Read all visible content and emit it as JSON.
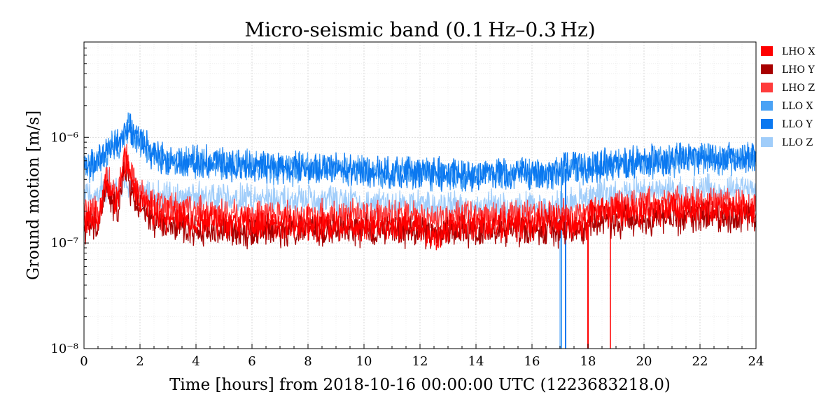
{
  "chart_data": {
    "type": "line",
    "title": "Micro-seismic band (0.1 Hz–0.3 Hz)",
    "xlabel": "Time [hours] from 2018-10-16 00:00:00 UTC (1223683218.0)",
    "ylabel": "Ground motion [m/s]",
    "xlim": [
      0,
      24
    ],
    "ylim": [
      1e-08,
      8e-06
    ],
    "yscale": "log",
    "grid": true,
    "legend_position": "right",
    "x_ticks": [
      0,
      2,
      4,
      6,
      8,
      10,
      12,
      14,
      16,
      18,
      20,
      22,
      24
    ],
    "x_tick_labels": [
      "0",
      "2",
      "4",
      "6",
      "8",
      "10",
      "12",
      "14",
      "16",
      "18",
      "20",
      "22",
      "24"
    ],
    "y_ticks": [
      1e-08,
      1e-07,
      1e-06
    ],
    "y_tick_labels": [
      "10⁻⁸",
      "10⁻⁷",
      "10⁻⁶"
    ],
    "x_hours": [
      0,
      0.5,
      0.8,
      1.0,
      1.2,
      1.5,
      1.6,
      2.0,
      2.5,
      3,
      4,
      5,
      6,
      7,
      8,
      9,
      10,
      11,
      12,
      12.6,
      13,
      14,
      15,
      16,
      16.5,
      17.0,
      17.2,
      17.5,
      18.0,
      18.7,
      19,
      20,
      21,
      22,
      23,
      24
    ],
    "series": [
      {
        "name": "LHO X",
        "color": "#ff0000",
        "values": [
          1.6e-07,
          1.7e-07,
          4e-07,
          2.6e-07,
          2.4e-07,
          6.5e-07,
          4.2e-07,
          2.6e-07,
          2e-07,
          1.8e-07,
          1.6e-07,
          1.6e-07,
          1.5e-07,
          1.5e-07,
          1.5e-07,
          1.5e-07,
          1.5e-07,
          1.5e-07,
          1.5e-07,
          1e-07,
          1.5e-07,
          1.5e-07,
          1.5e-07,
          1.5e-07,
          1.6e-07,
          1.6e-07,
          1.5e-07,
          1.5e-07,
          null,
          2e-07,
          2e-07,
          2e-07,
          2.2e-07,
          2.1e-07,
          2e-07,
          2e-07
        ],
        "dropouts": [
          18.0
        ]
      },
      {
        "name": "LHO Y",
        "color": "#a80000",
        "values": [
          1.4e-07,
          1.4e-07,
          3.5e-07,
          2.2e-07,
          2e-07,
          5.5e-07,
          3.5e-07,
          2e-07,
          1.6e-07,
          1.4e-07,
          1.3e-07,
          1.3e-07,
          1.3e-07,
          1.3e-07,
          1.3e-07,
          1.3e-07,
          1.3e-07,
          1.3e-07,
          1.3e-07,
          1.2e-07,
          1.3e-07,
          1.3e-07,
          1.3e-07,
          1.3e-07,
          1.3e-07,
          1.3e-07,
          1.3e-07,
          1.3e-07,
          null,
          1.6e-07,
          1.6e-07,
          1.7e-07,
          1.7e-07,
          1.8e-07,
          1.8e-07,
          1.8e-07
        ],
        "dropouts": [
          18.0
        ]
      },
      {
        "name": "LHO Z",
        "color": "#ff3c3c",
        "values": [
          1.9e-07,
          1.9e-07,
          4.5e-07,
          3e-07,
          2.8e-07,
          7.5e-07,
          4.8e-07,
          3e-07,
          2.4e-07,
          2.2e-07,
          2e-07,
          1.9e-07,
          1.8e-07,
          1.8e-07,
          1.8e-07,
          1.8e-07,
          1.8e-07,
          1.8e-07,
          1.8e-07,
          1.7e-07,
          1.8e-07,
          1.8e-07,
          1.8e-07,
          1.8e-07,
          1.9e-07,
          2e-07,
          1.9e-07,
          1.8e-07,
          null,
          2.1e-07,
          2.2e-07,
          2.3e-07,
          2.4e-07,
          2.4e-07,
          2.4e-07,
          2.3e-07
        ],
        "dropouts": [
          18.8
        ]
      },
      {
        "name": "LLO X",
        "color": "#4aa2f5",
        "values": [
          5.3e-07,
          5.5e-07,
          6.5e-07,
          8.5e-07,
          8e-07,
          1.1e-06,
          1.2e-06,
          9e-07,
          6.5e-07,
          6e-07,
          5.8e-07,
          5.6e-07,
          5.3e-07,
          5e-07,
          5e-07,
          5e-07,
          4.7e-07,
          4.6e-07,
          4.5e-07,
          4.4e-07,
          4.3e-07,
          4.3e-07,
          4.5e-07,
          4.6e-07,
          4.6e-07,
          4.5e-07,
          5e-07,
          5e-07,
          5.2e-07,
          5.4e-07,
          5.5e-07,
          5.8e-07,
          6e-07,
          6.2e-07,
          6.3e-07,
          6.3e-07
        ],
        "dropouts": [
          17.05
        ]
      },
      {
        "name": "LLO Y",
        "color": "#0a78f0",
        "values": [
          5.5e-07,
          5.7e-07,
          6.8e-07,
          9e-07,
          8.5e-07,
          1.15e-06,
          1.25e-06,
          9.5e-07,
          6.8e-07,
          6.2e-07,
          6e-07,
          5.7e-07,
          5.4e-07,
          5.1e-07,
          5.1e-07,
          5.1e-07,
          4.8e-07,
          4.7e-07,
          4.6e-07,
          4.5e-07,
          4.4e-07,
          4.4e-07,
          4.6e-07,
          4.7e-07,
          4.7e-07,
          4.6e-07,
          5.2e-07,
          5.1e-07,
          5.3e-07,
          5.5e-07,
          5.6e-07,
          5.9e-07,
          6.1e-07,
          6.3e-07,
          6.4e-07,
          6.4e-07
        ],
        "dropouts": [
          17.2
        ]
      },
      {
        "name": "LLO Z",
        "color": "#a0cdfa",
        "values": [
          2.8e-07,
          2.9e-07,
          3.5e-07,
          3.5e-07,
          3.2e-07,
          4e-07,
          3.8e-07,
          3e-07,
          2.8e-07,
          2.7e-07,
          2.7e-07,
          2.7e-07,
          2.6e-07,
          2.5e-07,
          2.5e-07,
          2.4e-07,
          2.4e-07,
          2.3e-07,
          2.3e-07,
          2.2e-07,
          2.2e-07,
          2.2e-07,
          2.2e-07,
          2.2e-07,
          2.2e-07,
          2.1e-07,
          2.3e-07,
          2.5e-07,
          2.7e-07,
          2.9e-07,
          2.9e-07,
          3e-07,
          3.1e-07,
          3.1e-07,
          3.2e-07,
          3.2e-07
        ],
        "dropouts": [
          17.0
        ]
      }
    ]
  }
}
